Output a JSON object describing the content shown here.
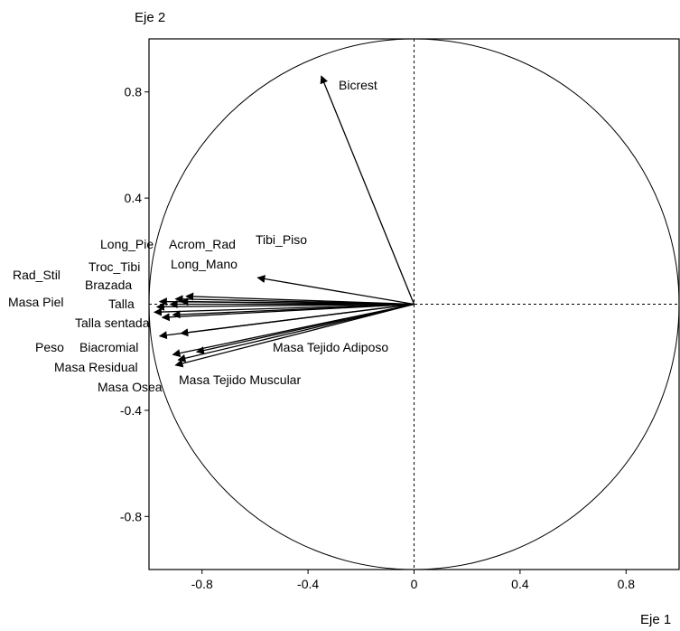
{
  "chart_data": {
    "type": "scatter",
    "subtype": "correlation-circle",
    "title": "",
    "xlabel": "Eje 1",
    "ylabel": "Eje 2",
    "xlim": [
      -1,
      1
    ],
    "ylim": [
      -1,
      1
    ],
    "x_ticks": [
      "-0.8",
      "-0.4",
      "0",
      "0.4",
      "0.8"
    ],
    "x_tick_values": [
      -0.8,
      -0.4,
      0,
      0.4,
      0.8
    ],
    "y_ticks": [
      "0.8",
      "0.4",
      "-0.4",
      "-0.8"
    ],
    "y_tick_values": [
      0.8,
      0.4,
      -0.4,
      -0.8
    ],
    "grid": false,
    "reference_lines": "dashed lines at x = 0 and y = 0",
    "unit_circle": true,
    "colors": {
      "arrows": "#000000",
      "circle": "#000000",
      "background": "#ffffff"
    },
    "vectors": [
      {
        "name": "Bicrest",
        "x": -0.35,
        "y": 0.86
      },
      {
        "name": "Tibi_Piso",
        "x": -0.59,
        "y": 0.1
      },
      {
        "name": "Long_Pie",
        "x": -0.88,
        "y": 0.01
      },
      {
        "name": "Acrom_Rad",
        "x": -0.9,
        "y": 0.02
      },
      {
        "name": "Long_Mano",
        "x": -0.86,
        "y": 0.03
      },
      {
        "name": "Rad_Stil",
        "x": -0.98,
        "y": -0.03
      },
      {
        "name": "Troc_Tibi",
        "x": -0.92,
        "y": 0.0
      },
      {
        "name": "Brazada",
        "x": -0.96,
        "y": 0.01
      },
      {
        "name": "Masa Piel",
        "x": -0.97,
        "y": -0.01
      },
      {
        "name": "Talla",
        "x": -0.95,
        "y": -0.05
      },
      {
        "name": "Talla sentada",
        "x": -0.91,
        "y": -0.04
      },
      {
        "name": "Peso",
        "x": -0.96,
        "y": -0.12
      },
      {
        "name": "Biacromial",
        "x": -0.88,
        "y": -0.11
      },
      {
        "name": "Masa Residual",
        "x": -0.91,
        "y": -0.19
      },
      {
        "name": "Masa Osea",
        "x": -0.9,
        "y": -0.23
      },
      {
        "name": "Masa Tejido Muscular",
        "x": -0.89,
        "y": -0.21
      },
      {
        "name": "Masa Tejido Adiposo",
        "x": -0.82,
        "y": -0.18
      }
    ]
  }
}
